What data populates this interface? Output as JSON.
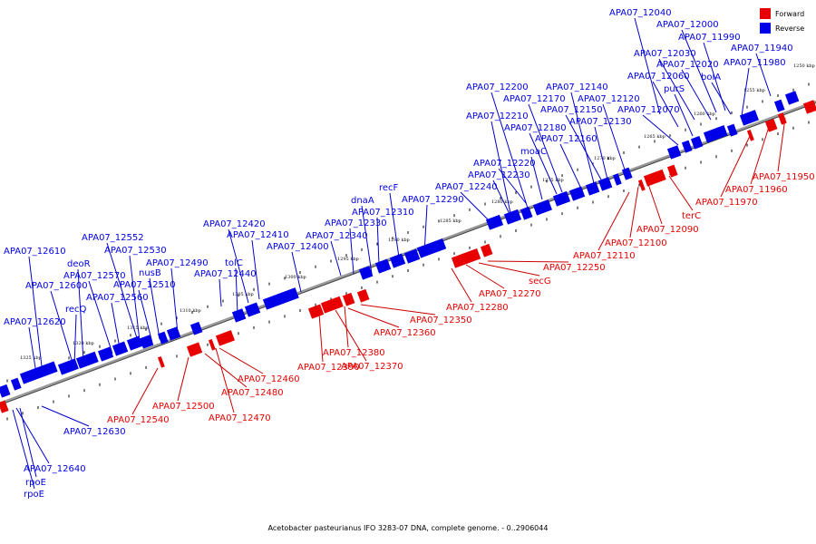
{
  "caption": "Acetobacter pasteurianus IFO 3283-07 DNA, complete genome. - 0..2906044",
  "colors": {
    "forward": "#e80000",
    "reverse": "#0000e8",
    "axis": "#808080",
    "leader_forward": "#cc0000",
    "leader_reverse": "#0000cc"
  },
  "legend": {
    "forward": "Forward",
    "reverse": "Reverse"
  },
  "ticks": [
    "1250 kbp",
    "1255 kbp",
    "1260 kbp",
    "1265 kbp",
    "1270 kbp",
    "1275 kbp",
    "1280 kbp",
    "1285 kbp",
    "1290 kbp",
    "1295 kbp",
    "1300 kbp",
    "1305 kbp",
    "1310 kbp",
    "1315 kbp",
    "1320 kbp",
    "1325 kbp"
  ],
  "reverse_labels": [
    "APA07_12040",
    "APA07_12000",
    "APA07_11990",
    "APA07_12030",
    "APA07_11940",
    "APA07_12020",
    "APA07_11980",
    "APA07_12060",
    "bolA",
    "purS",
    "APA07_12200",
    "APA07_12140",
    "APA07_12170",
    "APA07_12120",
    "APA07_12150",
    "APA07_12070",
    "APA07_12210",
    "APA07_12130",
    "APA07_12180",
    "APA07_12160",
    "moaC",
    "APA07_12220",
    "APA07_12230",
    "recF",
    "APA07_12240",
    "dnaA",
    "APA07_12290",
    "APA07_12310",
    "APA07_12330",
    "APA07_12420",
    "APA07_12340",
    "APA07_12410",
    "APA07_12400",
    "APA07_12552",
    "tolC",
    "APA07_12610",
    "APA07_12530",
    "deoR",
    "APA07_12490",
    "APA07_12570",
    "nusB",
    "APA07_12440",
    "APA07_12600",
    "APA07_12510",
    "recQ",
    "APA07_12560",
    "APA07_12620",
    "APA07_12630",
    "APA07_12640",
    "rpoE",
    "rpoE"
  ],
  "forward_labels": [
    "APA07_11950",
    "APA07_11960",
    "APA07_11970",
    "terC",
    "APA07_12090",
    "APA07_12100",
    "APA07_12110",
    "APA07_12250",
    "secG",
    "APA07_12270",
    "APA07_12280",
    "APA07_12350",
    "APA07_12360",
    "APA07_12380",
    "APA07_12370",
    "APA07_12390",
    "APA07_12460",
    "APA07_12480",
    "APA07_12500",
    "APA07_12470",
    "APA07_12540"
  ]
}
